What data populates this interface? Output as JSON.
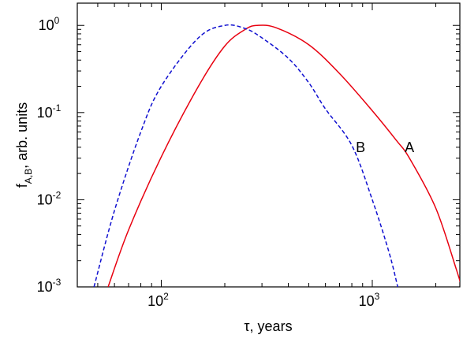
{
  "chart_data": {
    "type": "line",
    "xlabel": {
      "greek": "τ",
      "text": ", years"
    },
    "ylabel": {
      "base": "f",
      "sub": "A,B",
      "text": ", arb. units"
    },
    "x_scale": "log",
    "y_scale": "log",
    "xlim": [
      40,
      2600
    ],
    "ylim": [
      0.001,
      1.8
    ],
    "grid": false,
    "x_ticks": [
      {
        "value": 100,
        "base": "10",
        "exp": "2"
      },
      {
        "value": 1000,
        "base": "10",
        "exp": "3"
      }
    ],
    "y_ticks": [
      {
        "value": 0.001,
        "base": "10",
        "exp": "-3"
      },
      {
        "value": 0.01,
        "base": "10",
        "exp": "-2"
      },
      {
        "value": 0.1,
        "base": "10",
        "exp": "-1"
      },
      {
        "value": 1,
        "base": "10",
        "exp": "0"
      }
    ],
    "series": [
      {
        "name": "A",
        "color": "#e8000f",
        "style": "solid",
        "points": [
          [
            56,
            0.001
          ],
          [
            70,
            0.0045
          ],
          [
            100,
            0.031
          ],
          [
            150,
            0.2
          ],
          [
            200,
            0.58
          ],
          [
            250,
            0.9
          ],
          [
            285,
            1.0
          ],
          [
            350,
            0.94
          ],
          [
            500,
            0.6
          ],
          [
            700,
            0.28
          ],
          [
            1000,
            0.105
          ],
          [
            1300,
            0.048
          ],
          [
            1500,
            0.03
          ],
          [
            2000,
            0.008
          ],
          [
            2500,
            0.0016
          ],
          [
            2650,
            0.001
          ]
        ]
      },
      {
        "name": "B",
        "color": "#1010d0",
        "style": "dashed",
        "points": [
          [
            48,
            0.001
          ],
          [
            60,
            0.0075
          ],
          [
            80,
            0.06
          ],
          [
            100,
            0.2
          ],
          [
            150,
            0.72
          ],
          [
            200,
            1.0
          ],
          [
            250,
            0.92
          ],
          [
            300,
            0.72
          ],
          [
            400,
            0.42
          ],
          [
            500,
            0.22
          ],
          [
            600,
            0.11
          ],
          [
            800,
            0.042
          ],
          [
            1000,
            0.01
          ],
          [
            1200,
            0.0025
          ],
          [
            1320,
            0.001
          ]
        ]
      }
    ],
    "annotations": [
      {
        "text": "B",
        "x": 880,
        "y": 0.04
      },
      {
        "text": "A",
        "x": 1500,
        "y": 0.04
      }
    ]
  }
}
